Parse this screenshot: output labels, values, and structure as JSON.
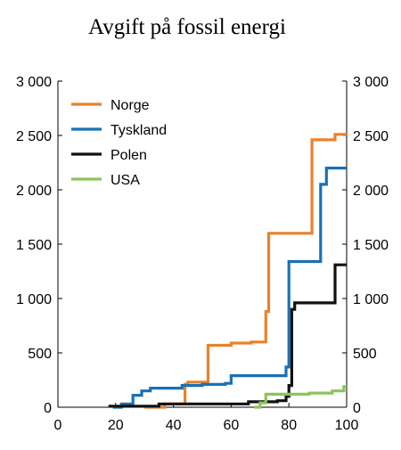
{
  "chart_data": {
    "type": "line",
    "step": true,
    "title": "Avgift på fossil energi",
    "xlabel": "",
    "ylabel": "",
    "xlim": [
      0,
      100
    ],
    "ylim": [
      0,
      3000
    ],
    "x_ticks": [
      0,
      20,
      40,
      60,
      80,
      100
    ],
    "y_ticks": [
      0,
      500,
      1000,
      1500,
      2000,
      2500,
      3000
    ],
    "y_tick_labels": [
      "0",
      "500",
      "1 000",
      "1 500",
      "2 000",
      "2 500",
      "3 000"
    ],
    "right_axis_mirror": true,
    "grid": false,
    "legend_position": "top-left",
    "series": [
      {
        "name": "Norge",
        "color": "#E8822B",
        "points": [
          [
            30,
            0
          ],
          [
            37,
            0
          ],
          [
            37,
            30
          ],
          [
            44,
            30
          ],
          [
            44,
            210
          ],
          [
            45,
            210
          ],
          [
            45,
            230
          ],
          [
            52,
            230
          ],
          [
            52,
            570
          ],
          [
            60,
            570
          ],
          [
            60,
            590
          ],
          [
            67,
            590
          ],
          [
            67,
            600
          ],
          [
            72,
            600
          ],
          [
            72,
            880
          ],
          [
            73,
            880
          ],
          [
            73,
            1600
          ],
          [
            88,
            1600
          ],
          [
            88,
            2460
          ],
          [
            96,
            2460
          ],
          [
            96,
            2510
          ],
          [
            100,
            2510
          ]
        ]
      },
      {
        "name": "Tyskland",
        "color": "#1A71B5",
        "points": [
          [
            19,
            0
          ],
          [
            22,
            0
          ],
          [
            22,
            30
          ],
          [
            26,
            30
          ],
          [
            26,
            110
          ],
          [
            29,
            110
          ],
          [
            29,
            150
          ],
          [
            32,
            150
          ],
          [
            32,
            175
          ],
          [
            43,
            175
          ],
          [
            43,
            200
          ],
          [
            50,
            200
          ],
          [
            50,
            210
          ],
          [
            58,
            210
          ],
          [
            58,
            220
          ],
          [
            60,
            220
          ],
          [
            60,
            290
          ],
          [
            79,
            290
          ],
          [
            79,
            370
          ],
          [
            80,
            370
          ],
          [
            80,
            1340
          ],
          [
            91,
            1340
          ],
          [
            91,
            2050
          ],
          [
            93,
            2050
          ],
          [
            93,
            2200
          ],
          [
            100,
            2200
          ]
        ]
      },
      {
        "name": "Polen",
        "color": "#111111",
        "points": [
          [
            18,
            0
          ],
          [
            18,
            10
          ],
          [
            35,
            10
          ],
          [
            35,
            30
          ],
          [
            66,
            30
          ],
          [
            66,
            50
          ],
          [
            76,
            50
          ],
          [
            76,
            60
          ],
          [
            79,
            60
          ],
          [
            79,
            100
          ],
          [
            80,
            100
          ],
          [
            80,
            200
          ],
          [
            81,
            200
          ],
          [
            81,
            900
          ],
          [
            82,
            900
          ],
          [
            82,
            960
          ],
          [
            96,
            960
          ],
          [
            96,
            1310
          ],
          [
            100,
            1310
          ]
        ]
      },
      {
        "name": "USA",
        "color": "#8DC45A",
        "points": [
          [
            68,
            0
          ],
          [
            70,
            0
          ],
          [
            70,
            40
          ],
          [
            72,
            40
          ],
          [
            72,
            120
          ],
          [
            87,
            120
          ],
          [
            87,
            130
          ],
          [
            95,
            130
          ],
          [
            95,
            150
          ],
          [
            99,
            150
          ],
          [
            99,
            190
          ],
          [
            100,
            190
          ]
        ]
      }
    ]
  }
}
